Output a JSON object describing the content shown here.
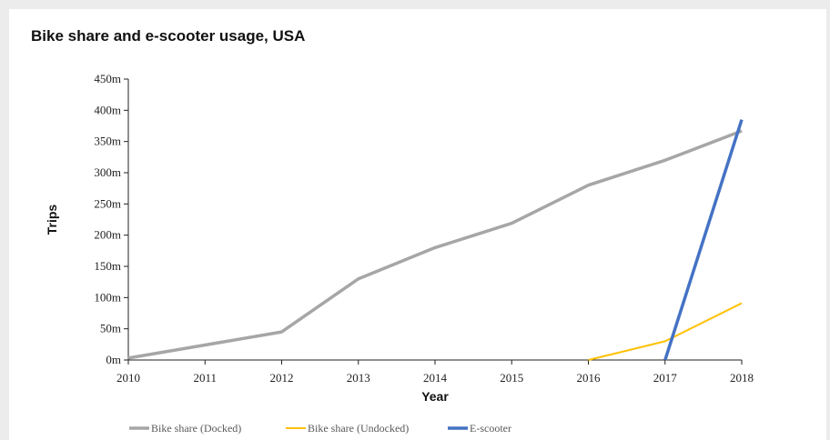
{
  "chart_data": {
    "type": "line",
    "title": "Bike share and e-scooter usage, USA",
    "xlabel": "Year",
    "ylabel": "Trips",
    "x": [
      "2010",
      "2011",
      "2012",
      "2013",
      "2014",
      "2015",
      "2016",
      "2017",
      "2018"
    ],
    "y_ticks": [
      "0m",
      "50m",
      "100m",
      "150m",
      "200m",
      "250m",
      "300m",
      "350m",
      "400m",
      "450m"
    ],
    "ylim": [
      0,
      450
    ],
    "grid": false,
    "legend_position": "bottom-left",
    "series": [
      {
        "name": "Bike share (Docked)",
        "color": "#a6a6a6",
        "values": [
          3,
          24,
          45,
          130,
          180,
          219,
          280,
          320,
          367
        ]
      },
      {
        "name": "Bike share (Undocked)",
        "color": "#ffc000",
        "values": [
          null,
          null,
          null,
          null,
          null,
          null,
          0,
          30,
          91
        ]
      },
      {
        "name": "E-scooter",
        "color": "#4472c4",
        "values": [
          null,
          null,
          null,
          null,
          null,
          null,
          null,
          0,
          385
        ]
      }
    ]
  }
}
